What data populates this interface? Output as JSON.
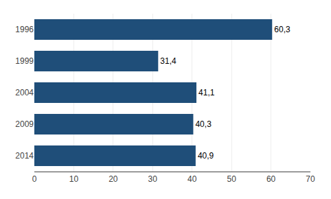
{
  "chart_data": {
    "type": "bar",
    "orientation": "horizontal",
    "categories": [
      "1996",
      "1999",
      "2004",
      "2009",
      "2014"
    ],
    "values": [
      60.3,
      31.4,
      41.1,
      40.3,
      40.9
    ],
    "value_labels": [
      "60,3",
      "31,4",
      "41,1",
      "40,3",
      "40,9"
    ],
    "data_labels": true,
    "color": "#1f4e79",
    "xlim": [
      0,
      70
    ],
    "xticks": [
      0,
      10,
      20,
      30,
      40,
      50,
      60,
      70
    ],
    "grid": true
  }
}
